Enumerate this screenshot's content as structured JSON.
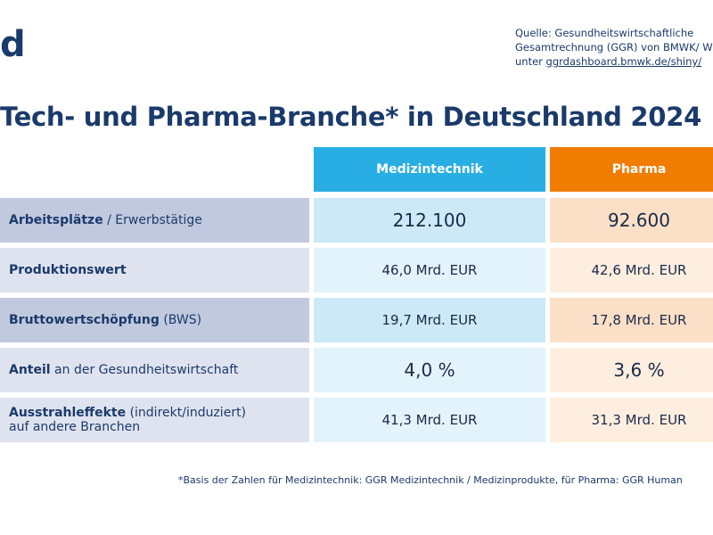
{
  "logo": "d",
  "source": {
    "line1": "Quelle: Gesundheitswirtschaftliche",
    "line2": "Gesamtrechnung (GGR) von BMWK/ W",
    "line3_prefix": "unter",
    "link": "ggrdashboard.bmwk.de/shiny/"
  },
  "title": "Tech- und Pharma-Branche* in Deutschland 2024",
  "table": {
    "headers": [
      "Medizintechnik",
      "Pharma"
    ],
    "rows": [
      {
        "bold": "Arbeitsplätze",
        "normal": "/ Erwerbstätige",
        "medtech": "212.100",
        "pharma": "92.600"
      },
      {
        "bold": "Produktionswert",
        "medtech": "46,0 Mrd. EUR",
        "pharma": "42,6 Mrd. EUR"
      },
      {
        "bold": "Bruttowertschöpfung",
        "normal": "(BWS)",
        "medtech": "19,7 Mrd. EUR",
        "pharma": "17,8 Mrd. EUR"
      },
      {
        "bold": "Anteil",
        "normal": "an der Gesundheitswirtschaft",
        "medtech": "4,0 %",
        "pharma": "3,6 %"
      },
      {
        "bold": "Ausstrahleffekte",
        "normal": "(indirekt/induziert)",
        "line2": "auf andere Branchen",
        "medtech": "41,3 Mrd. EUR",
        "pharma": "31,3 Mrd. EUR"
      }
    ]
  },
  "footnote": "*Basis der Zahlen für Medizintechnik:  GGR Medizintechnik / Medizinprodukte,  für Pharma:  GGR Human"
}
